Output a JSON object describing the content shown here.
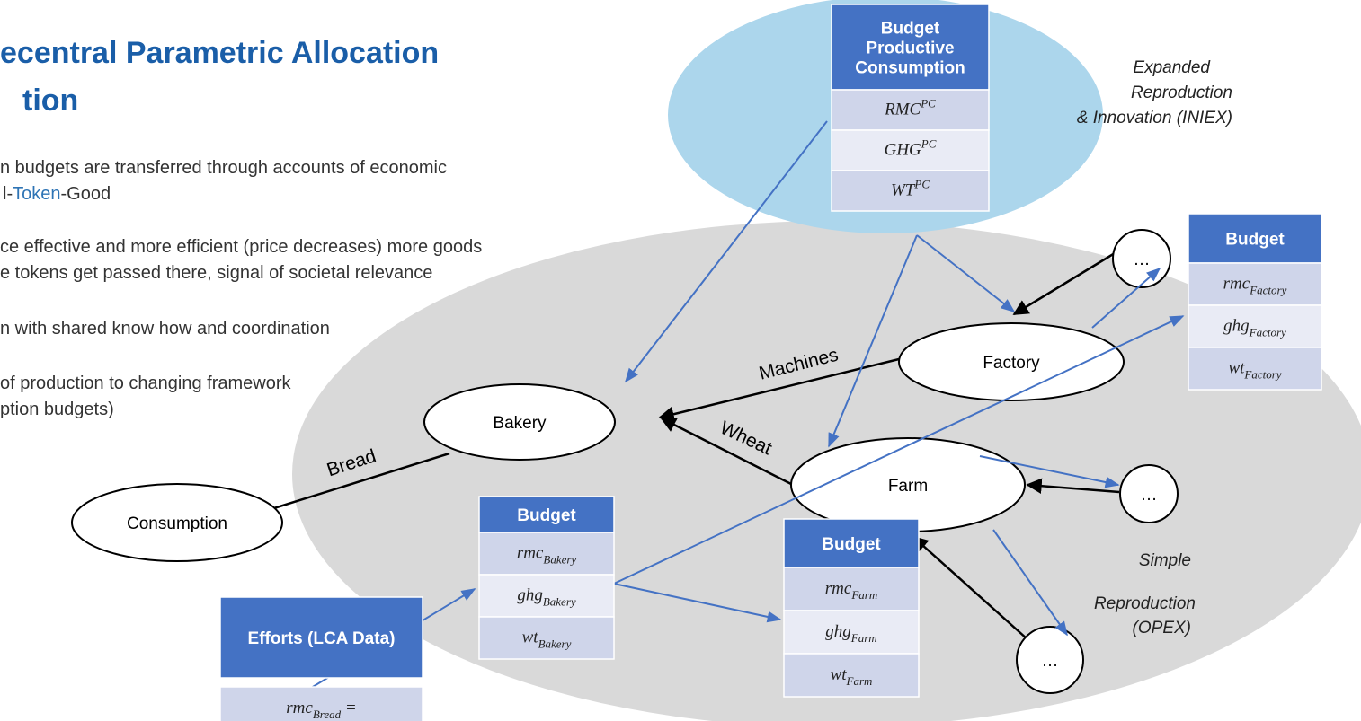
{
  "title": [
    "ecentral Parametric Allocation",
    "tion"
  ],
  "bullets": {
    "line1": "n budgets are transferred through accounts of economic",
    "token_line": {
      "pre": "l-",
      "token": "Token",
      "post": "-Good"
    },
    "others": [
      "ce effective and more efficient (price decreases) more goods",
      "e tokens get passed there, signal of societal relevance",
      "n with shared know how and coordination",
      "of production to changing framework",
      "ption budgets)"
    ]
  },
  "regions": {
    "expanded": [
      "Expanded",
      "Reproduction",
      "& Innovation (INIEX)"
    ],
    "simple": [
      "Simple",
      "Reproduction",
      "(OPEX)"
    ]
  },
  "nodes": [
    "Bakery",
    "Factory",
    "Farm",
    "Consumption",
    "…",
    "…",
    "…"
  ],
  "edges": [
    "Machines",
    "Wheat",
    "Bread"
  ],
  "tables": [
    {
      "header": [
        "Budget",
        "Productive",
        "Consumption"
      ],
      "rows": [
        {
          "base": "RMC",
          "sup": "PC"
        },
        {
          "base": "GHG",
          "sup": "PC"
        },
        {
          "base": "WT",
          "sup": "PC"
        }
      ]
    },
    {
      "header": [
        "Budget"
      ],
      "rows": [
        {
          "base": "rmc",
          "sub": "Factory"
        },
        {
          "base": "ghg",
          "sub": "Factory"
        },
        {
          "base": "wt",
          "sub": "Factory"
        }
      ]
    },
    {
      "header": [
        "Budget"
      ],
      "rows": [
        {
          "base": "rmc",
          "sub": "Bakery"
        },
        {
          "base": "ghg",
          "sub": "Bakery"
        },
        {
          "base": "wt",
          "sub": "Bakery"
        }
      ]
    },
    {
      "header": [
        "Budget"
      ],
      "rows": [
        {
          "base": "rmc",
          "sub": "Farm"
        },
        {
          "base": "ghg",
          "sub": "Farm"
        },
        {
          "base": "wt",
          "sub": "Farm"
        }
      ]
    },
    {
      "header": [
        "Efforts (LCA Data)"
      ],
      "rows": [
        {
          "base": "rmc",
          "sub": "Bread",
          "post": " ="
        }
      ]
    }
  ]
}
